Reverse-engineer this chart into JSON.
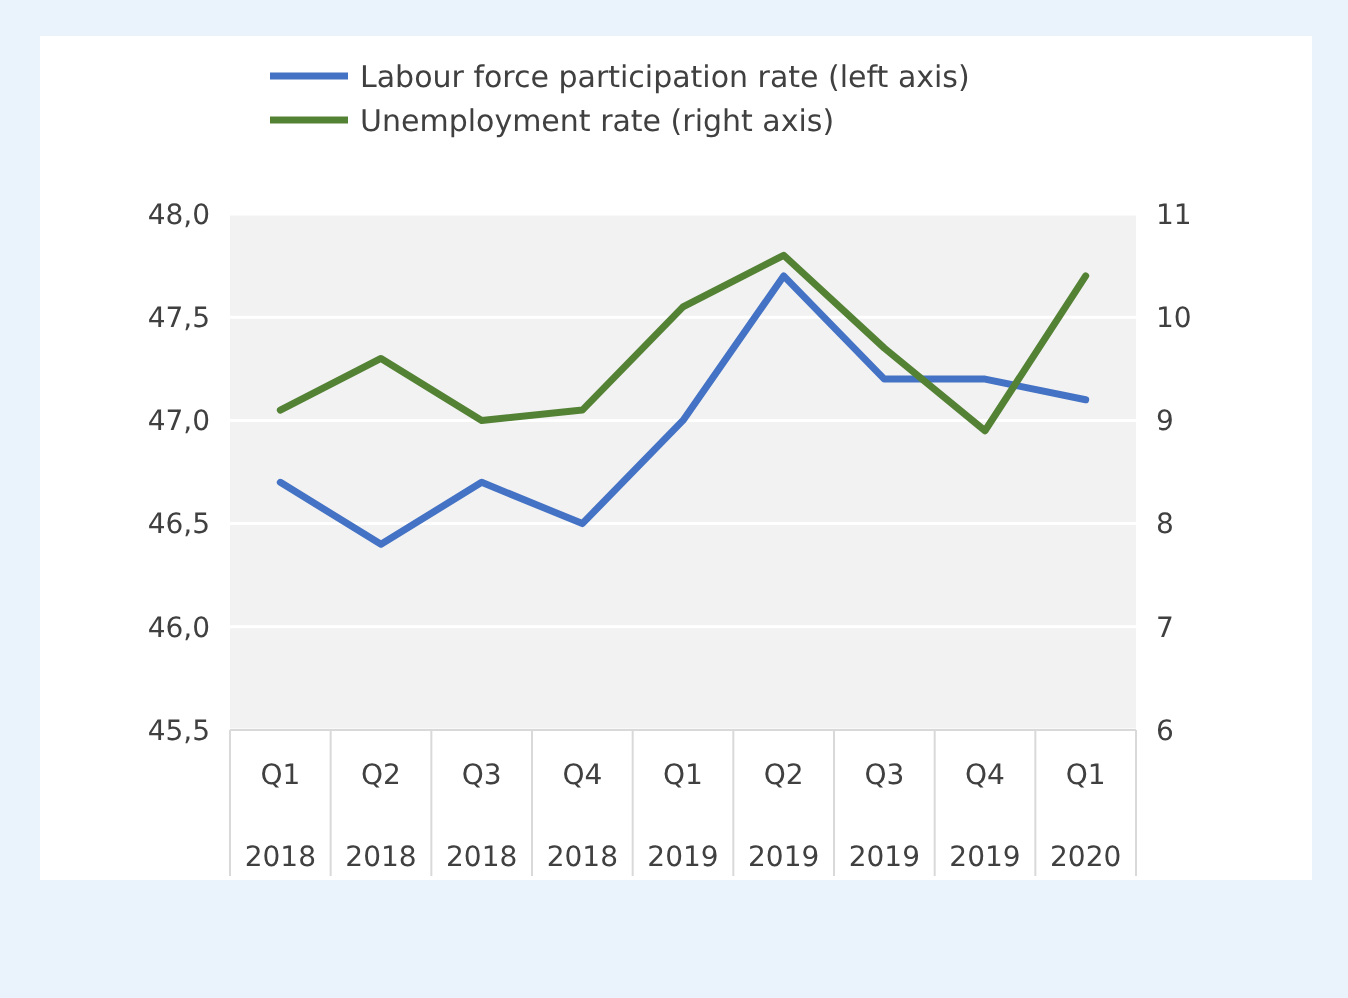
{
  "chart_data": {
    "type": "line",
    "categories": [
      "Q1 2018",
      "Q2 2018",
      "Q3 2018",
      "Q4 2018",
      "Q1 2019",
      "Q2 2019",
      "Q3 2019",
      "Q4 2019",
      "Q1 2020"
    ],
    "series": [
      {
        "name": "Labour force participation rate (left axis)",
        "color": "#4472c4",
        "values": [
          46.7,
          46.4,
          46.7,
          46.5,
          47.0,
          47.7,
          47.2,
          47.2,
          47.1
        ]
      },
      {
        "name": "Unemployment rate (right axis)",
        "color": "#548235",
        "axis": "y2",
        "values": [
          9.1,
          9.6,
          9.0,
          9.1,
          10.1,
          10.6,
          9.7,
          8.9,
          10.4
        ]
      }
    ],
    "ylim": [
      45.5,
      48
    ],
    "yticks": [
      {
        "value": 45.5,
        "label": "45,5"
      },
      {
        "value": 46,
        "label": "46,0"
      },
      {
        "value": 46.5,
        "label": "46,5"
      },
      {
        "value": 47,
        "label": "47,0"
      },
      {
        "value": 47.5,
        "label": "47,5"
      },
      {
        "value": 48,
        "label": "48,0"
      }
    ],
    "y2lim": [
      6,
      11
    ],
    "y2ticks": [
      6,
      7,
      8,
      9,
      10,
      11
    ],
    "grid": "y",
    "legend": "top",
    "marker": "none",
    "line_style": "solid"
  }
}
